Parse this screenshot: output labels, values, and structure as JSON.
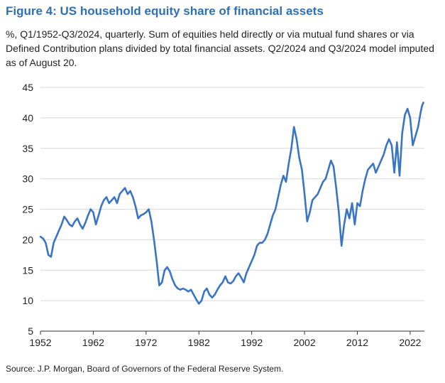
{
  "figure": {
    "title": "Figure 4: US household equity share of financial assets",
    "subtitle": "%, Q1/1952-Q3/2024, quarterly. Sum of equities held directly or via mutual fund shares or via Defined Contribution plans divided by total financial assets. Q2/2024 and Q3/2024 model imputed as of August 20.",
    "source": "Source: J.P. Morgan, Board of Governors of the Federal Reserve System."
  },
  "chart_data": {
    "type": "line",
    "title": "Figure 4: US household equity share of financial assets",
    "xlabel": "",
    "ylabel": "%",
    "xlim": [
      1952,
      2024.7
    ],
    "ylim": [
      5,
      45
    ],
    "x_ticks": [
      1952,
      1962,
      1972,
      1982,
      1992,
      2002,
      2012,
      2022
    ],
    "y_ticks": [
      5,
      10,
      15,
      20,
      25,
      30,
      35,
      40,
      45
    ],
    "grid": "horizontal",
    "color": "#3a74c4",
    "series": [
      {
        "name": "Household equity share of financial assets",
        "points": [
          [
            1952,
            20.5
          ],
          [
            1952.5,
            20.2
          ],
          [
            1953,
            19.5
          ],
          [
            1953.5,
            17.5
          ],
          [
            1954,
            17.2
          ],
          [
            1954.5,
            19.5
          ],
          [
            1955,
            20.5
          ],
          [
            1955.5,
            21.5
          ],
          [
            1956,
            22.5
          ],
          [
            1956.5,
            23.8
          ],
          [
            1957,
            23.2
          ],
          [
            1957.5,
            22.5
          ],
          [
            1958,
            22.2
          ],
          [
            1958.5,
            23.0
          ],
          [
            1959,
            23.5
          ],
          [
            1959.5,
            22.5
          ],
          [
            1960,
            21.8
          ],
          [
            1960.5,
            22.8
          ],
          [
            1961,
            24.0
          ],
          [
            1961.5,
            25.0
          ],
          [
            1962,
            24.5
          ],
          [
            1962.5,
            22.5
          ],
          [
            1963,
            24.0
          ],
          [
            1963.5,
            25.5
          ],
          [
            1964,
            26.5
          ],
          [
            1964.5,
            27.0
          ],
          [
            1965,
            26.0
          ],
          [
            1965.5,
            26.5
          ],
          [
            1966,
            27.0
          ],
          [
            1966.5,
            26.0
          ],
          [
            1967,
            27.5
          ],
          [
            1967.5,
            28.0
          ],
          [
            1968,
            28.5
          ],
          [
            1968.5,
            27.5
          ],
          [
            1969,
            28.0
          ],
          [
            1969.5,
            27.0
          ],
          [
            1970,
            25.5
          ],
          [
            1970.5,
            23.5
          ],
          [
            1971,
            24.0
          ],
          [
            1971.5,
            24.2
          ],
          [
            1972,
            24.5
          ],
          [
            1972.5,
            25.0
          ],
          [
            1973,
            23.0
          ],
          [
            1973.5,
            20.0
          ],
          [
            1974,
            16.5
          ],
          [
            1974.5,
            12.5
          ],
          [
            1975,
            13.0
          ],
          [
            1975.5,
            15.0
          ],
          [
            1976,
            15.5
          ],
          [
            1976.5,
            14.8
          ],
          [
            1977,
            13.5
          ],
          [
            1977.5,
            12.5
          ],
          [
            1978,
            12.0
          ],
          [
            1978.5,
            11.8
          ],
          [
            1979,
            12.0
          ],
          [
            1979.5,
            11.8
          ],
          [
            1980,
            11.5
          ],
          [
            1980.5,
            11.8
          ],
          [
            1981,
            11.0
          ],
          [
            1981.5,
            10.2
          ],
          [
            1982,
            9.5
          ],
          [
            1982.5,
            10.0
          ],
          [
            1983,
            11.5
          ],
          [
            1983.5,
            12.0
          ],
          [
            1984,
            11.0
          ],
          [
            1984.5,
            10.5
          ],
          [
            1985,
            11.0
          ],
          [
            1985.5,
            11.8
          ],
          [
            1986,
            12.5
          ],
          [
            1986.5,
            13.0
          ],
          [
            1987,
            14.0
          ],
          [
            1987.5,
            13.0
          ],
          [
            1988,
            12.8
          ],
          [
            1988.5,
            13.2
          ],
          [
            1989,
            14.0
          ],
          [
            1989.5,
            14.5
          ],
          [
            1990,
            13.8
          ],
          [
            1990.5,
            13.0
          ],
          [
            1991,
            14.5
          ],
          [
            1991.5,
            15.5
          ],
          [
            1992,
            16.5
          ],
          [
            1992.5,
            17.5
          ],
          [
            1993,
            19.0
          ],
          [
            1993.5,
            19.5
          ],
          [
            1994,
            19.5
          ],
          [
            1994.5,
            20.0
          ],
          [
            1995,
            21.0
          ],
          [
            1995.5,
            22.5
          ],
          [
            1996,
            24.0
          ],
          [
            1996.5,
            25.0
          ],
          [
            1997,
            27.0
          ],
          [
            1997.5,
            29.0
          ],
          [
            1998,
            30.5
          ],
          [
            1998.5,
            29.5
          ],
          [
            1999,
            32.5
          ],
          [
            1999.5,
            35.0
          ],
          [
            2000,
            38.5
          ],
          [
            2000.5,
            36.5
          ],
          [
            2001,
            33.5
          ],
          [
            2001.5,
            31.5
          ],
          [
            2002,
            27.5
          ],
          [
            2002.5,
            23.0
          ],
          [
            2003,
            24.5
          ],
          [
            2003.5,
            26.5
          ],
          [
            2004,
            27.0
          ],
          [
            2004.5,
            27.5
          ],
          [
            2005,
            28.5
          ],
          [
            2005.5,
            29.5
          ],
          [
            2006,
            30.0
          ],
          [
            2006.5,
            31.5
          ],
          [
            2007,
            33.0
          ],
          [
            2007.5,
            32.0
          ],
          [
            2008,
            28.5
          ],
          [
            2008.5,
            24.5
          ],
          [
            2009,
            19.0
          ],
          [
            2009.5,
            22.5
          ],
          [
            2010,
            25.0
          ],
          [
            2010.5,
            23.5
          ],
          [
            2011,
            26.0
          ],
          [
            2011.5,
            22.5
          ],
          [
            2012,
            26.0
          ],
          [
            2012.5,
            25.5
          ],
          [
            2013,
            28.0
          ],
          [
            2013.5,
            30.0
          ],
          [
            2014,
            31.5
          ],
          [
            2014.5,
            32.0
          ],
          [
            2015,
            32.5
          ],
          [
            2015.5,
            31.0
          ],
          [
            2016,
            32.0
          ],
          [
            2016.5,
            33.0
          ],
          [
            2017,
            34.0
          ],
          [
            2017.5,
            35.5
          ],
          [
            2018,
            36.5
          ],
          [
            2018.5,
            35.5
          ],
          [
            2019,
            31.0
          ],
          [
            2019.5,
            36.0
          ],
          [
            2020,
            30.5
          ],
          [
            2020.5,
            37.5
          ],
          [
            2021,
            40.5
          ],
          [
            2021.5,
            41.5
          ],
          [
            2022,
            40.0
          ],
          [
            2022.5,
            35.5
          ],
          [
            2023,
            37.0
          ],
          [
            2023.5,
            38.5
          ],
          [
            2024,
            41.0
          ],
          [
            2024.25,
            42.0
          ],
          [
            2024.5,
            42.5
          ]
        ]
      }
    ]
  }
}
